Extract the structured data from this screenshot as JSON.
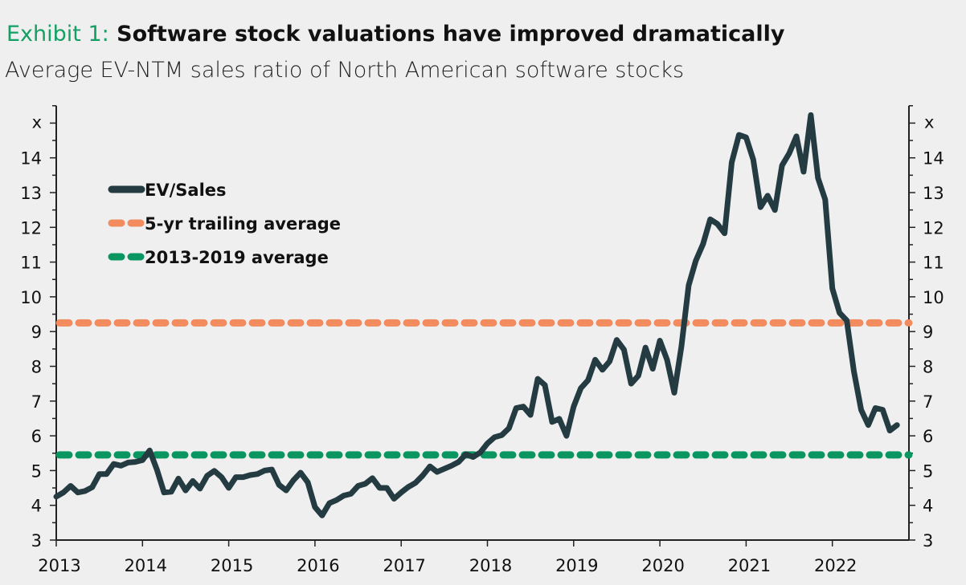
{
  "header": {
    "exhibit_label": "Exhibit 1:",
    "title": "Software stock valuations have improved dramatically",
    "subtitle": "Average EV-NTM sales ratio of North American software stocks"
  },
  "chart_data": {
    "type": "line",
    "title": "Software stock valuations have improved dramatically",
    "subtitle": "Average EV-NTM sales ratio of North American software stocks",
    "y_unit_label": "x",
    "ylim": [
      3,
      15.5
    ],
    "y_ticks": [
      3,
      4,
      5,
      6,
      7,
      8,
      9,
      10,
      11,
      12,
      13,
      14
    ],
    "x_ticks": [
      "2013",
      "2014",
      "2015",
      "2016",
      "2017",
      "2018",
      "2019",
      "2020",
      "2021",
      "2022"
    ],
    "xlim": [
      "2013-01",
      "2022-12"
    ],
    "dual_y_axis": true,
    "grid": false,
    "legend_placement": "top-left",
    "colors": {
      "ev_sales": "#243b42",
      "trailing": "#f28c5e",
      "longrun": "#0a9660",
      "accent": "#12a064"
    },
    "series": [
      {
        "name": "EV/Sales",
        "start": "2013-01",
        "frequency": "monthly",
        "values": [
          4.25,
          4.37,
          4.56,
          4.37,
          4.41,
          4.52,
          4.9,
          4.9,
          5.19,
          5.14,
          5.23,
          5.25,
          5.3,
          5.58,
          5.03,
          4.37,
          4.39,
          4.77,
          4.43,
          4.7,
          4.48,
          4.85,
          4.99,
          4.81,
          4.5,
          4.81,
          4.81,
          4.87,
          4.9,
          5.0,
          5.03,
          4.59,
          4.43,
          4.72,
          4.94,
          4.66,
          3.95,
          3.71,
          4.06,
          4.15,
          4.28,
          4.33,
          4.56,
          4.62,
          4.78,
          4.5,
          4.5,
          4.19,
          4.37,
          4.53,
          4.65,
          4.86,
          5.12,
          4.96,
          5.05,
          5.14,
          5.25,
          5.47,
          5.39,
          5.52,
          5.78,
          5.96,
          6.02,
          6.22,
          6.8,
          6.84,
          6.6,
          7.64,
          7.46,
          6.4,
          6.49,
          6.0,
          6.84,
          7.37,
          7.6,
          8.19,
          7.9,
          8.14,
          8.76,
          8.48,
          7.5,
          7.73,
          8.54,
          7.93,
          8.74,
          8.19,
          7.24,
          8.57,
          10.33,
          11.04,
          11.52,
          12.23,
          12.1,
          11.83,
          13.87,
          14.66,
          14.59,
          13.95,
          12.58,
          12.91,
          12.5,
          13.78,
          14.13,
          14.62,
          13.6,
          15.23,
          13.42,
          12.8,
          10.24,
          9.54,
          9.32,
          7.86,
          6.75,
          6.31,
          6.8,
          6.75,
          6.15,
          6.31
        ]
      },
      {
        "name": "5-yr trailing average",
        "value": 9.25,
        "style": "dashed"
      },
      {
        "name": "2013-2019 average",
        "value": 5.45,
        "style": "dashed"
      }
    ]
  }
}
